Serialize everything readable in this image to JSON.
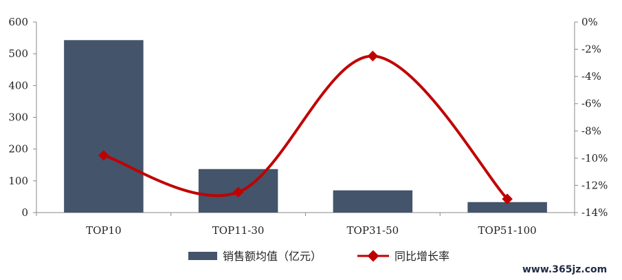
{
  "chart_data": {
    "type": "bar",
    "categories": [
      "TOP10",
      "TOP11-30",
      "TOP31-50",
      "TOP51-100"
    ],
    "series": [
      {
        "name": "销售额均值（亿元）",
        "type": "bar",
        "axis": "left",
        "values": [
          543,
          137,
          70,
          33
        ],
        "color": "#44546a"
      },
      {
        "name": "同比增长率",
        "type": "line",
        "axis": "right",
        "smooth": true,
        "values": [
          -9.8,
          -12.5,
          -2.5,
          -13.0
        ],
        "color": "#c00000"
      }
    ],
    "ylim": [
      0,
      600
    ],
    "yticks": [
      0,
      100,
      200,
      300,
      400,
      500,
      600
    ],
    "y2lim": [
      -14,
      0
    ],
    "y2ticks": [
      0,
      -2,
      -4,
      -6,
      -8,
      -10,
      -12,
      -14
    ],
    "y2tick_suffix": "%",
    "grid": false,
    "legend_position": "bottom"
  },
  "watermark": "www.365jz.com"
}
